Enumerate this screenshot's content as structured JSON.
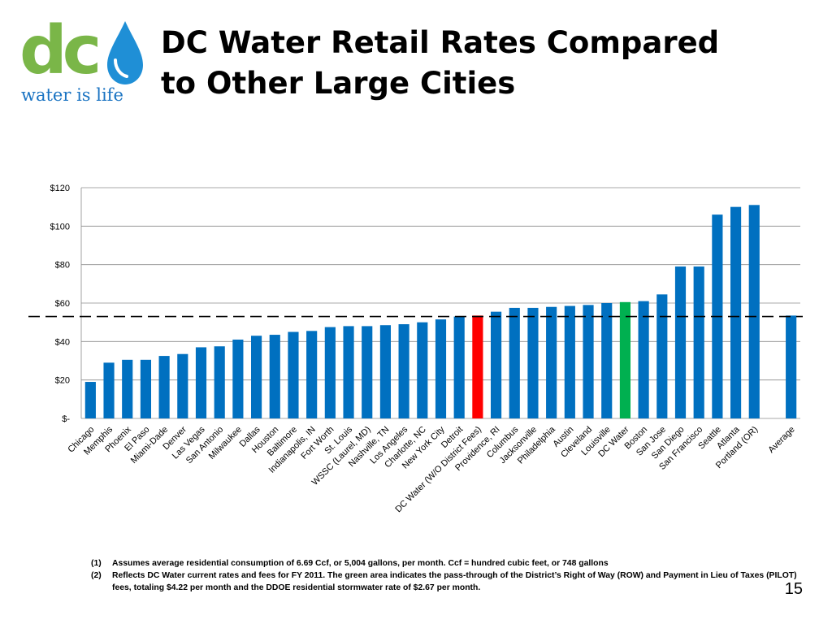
{
  "logo": {
    "text_main": "dc",
    "tagline": "water is life"
  },
  "title": {
    "line1": "DC Water Retail Rates Compared",
    "line2": "to Other Large Cities"
  },
  "chart_data": {
    "type": "bar",
    "title": "",
    "xlabel": "",
    "ylabel": "",
    "ylim": [
      0,
      120
    ],
    "yticks": [
      {
        "value": 0,
        "label": "$-"
      },
      {
        "value": 20,
        "label": "$20"
      },
      {
        "value": 40,
        "label": "$40"
      },
      {
        "value": 60,
        "label": "$60"
      },
      {
        "value": 80,
        "label": "$80"
      },
      {
        "value": 100,
        "label": "$100"
      },
      {
        "value": 120,
        "label": "$120"
      }
    ],
    "grid": true,
    "reference_line": {
      "value": 53,
      "style": "dashed"
    },
    "colors": {
      "default": "#0070c0",
      "highlight_red": "#ff0000",
      "highlight_green": "#00b050"
    },
    "categories": [
      "Chicago",
      "Memphis",
      "Phoenix",
      "El Paso",
      "Miami-Dade",
      "Denver",
      "Las Vegas",
      "San Antonio",
      "Milwaukee",
      "Dallas",
      "Houston",
      "Baltimore",
      "Indianapolis, IN",
      "Fort Worth",
      "St. Louis",
      "WSSC (Laurel, MD)",
      "Nashville, TN",
      "Los Angeles",
      "Charlotte, NC",
      "New York City",
      "Detroit",
      "DC Water (W/O District Fees)",
      "Providence, RI",
      "Columbus",
      "Jacksonville",
      "Philadelphia",
      "Austin",
      "Cleveland",
      "Louisville",
      "DC Water",
      "Boston",
      "San Jose",
      "San Diego",
      "San Francisco",
      "Seattle",
      "Atlanta",
      "Portland (OR)",
      "",
      "Average"
    ],
    "values": [
      19,
      29,
      30.5,
      30.5,
      32.5,
      33.5,
      37,
      37.5,
      41,
      43,
      43.5,
      45,
      45.5,
      47.5,
      48,
      48,
      48.5,
      49,
      50,
      51.5,
      53,
      53.5,
      55.5,
      57.5,
      57.5,
      58,
      58.5,
      59,
      60,
      60.5,
      61,
      64.5,
      79,
      79,
      106,
      110,
      111,
      null,
      53.5
    ],
    "bar_colors": [
      "#0070c0",
      "#0070c0",
      "#0070c0",
      "#0070c0",
      "#0070c0",
      "#0070c0",
      "#0070c0",
      "#0070c0",
      "#0070c0",
      "#0070c0",
      "#0070c0",
      "#0070c0",
      "#0070c0",
      "#0070c0",
      "#0070c0",
      "#0070c0",
      "#0070c0",
      "#0070c0",
      "#0070c0",
      "#0070c0",
      "#0070c0",
      "#ff0000",
      "#0070c0",
      "#0070c0",
      "#0070c0",
      "#0070c0",
      "#0070c0",
      "#0070c0",
      "#0070c0",
      "#00b050",
      "#0070c0",
      "#0070c0",
      "#0070c0",
      "#0070c0",
      "#0070c0",
      "#0070c0",
      "#0070c0",
      "#0070c0",
      "#0070c0"
    ]
  },
  "footnotes": [
    {
      "num": "(1)",
      "text": "Assumes average residential consumption of 6.69 Ccf, or 5,004 gallons, per month. Ccf = hundred cubic feet, or 748 gallons"
    },
    {
      "num": "(2)",
      "text": "Reflects DC Water current rates and fees for FY 2011.  The green area indicates the pass-through of the District’s Right of Way (ROW) and Payment in Lieu of Taxes (PILOT) fees, totaling $4.22 per month and the DDOE residential stormwater rate of $2.67 per month."
    }
  ],
  "page_number": "15"
}
